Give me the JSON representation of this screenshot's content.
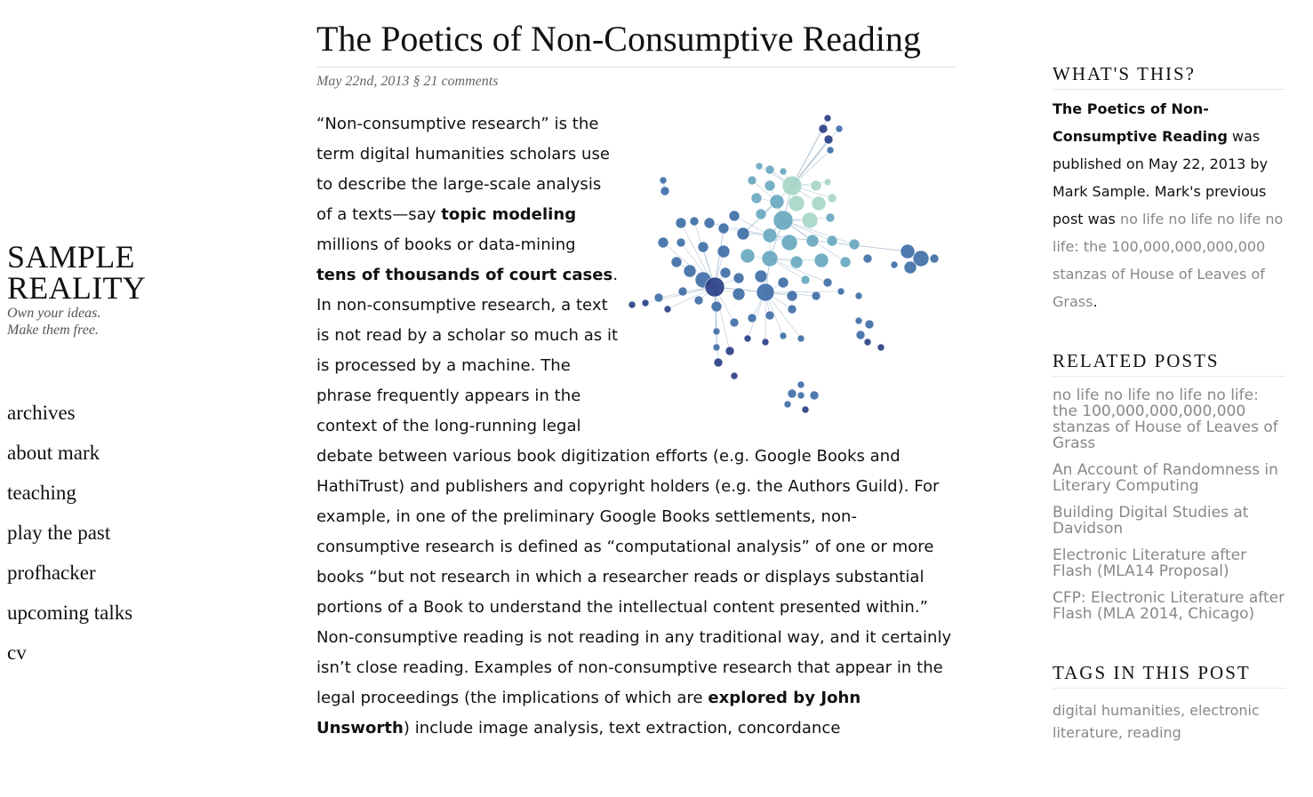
{
  "site": {
    "title_line1": "SAMPLE",
    "title_line2": "REALITY",
    "tagline_line1": "Own your ideas.",
    "tagline_line2": "Make them free."
  },
  "nav": [
    {
      "label": "archives"
    },
    {
      "label": "about mark"
    },
    {
      "label": "teaching"
    },
    {
      "label": "play the past"
    },
    {
      "label": "profhacker"
    },
    {
      "label": "upcoming talks"
    },
    {
      "label": "cv"
    }
  ],
  "post": {
    "title": "The Poetics of Non-Consumptive Reading",
    "date": "May 22nd, 2013",
    "separator": "§",
    "comments": "21 comments",
    "body": {
      "t1": "“Non-consumptive research” is the term digital humanities scholars use to describe the large-scale analysis of a texts—say ",
      "b1": "topic modeling",
      "t2": " millions of books or data-mining ",
      "b2": "tens of thousands of court cases",
      "t3": ". In non-consumptive research, a text is not read by a scholar so much as it is processed by a machine. The phrase frequently appears in the context of the long-running legal debate between various book digitization efforts (e.g. Google Books and HathiTrust) and publishers and copyright holders (e.g. the Authors Guild). For example, in one of the preliminary Google Books settlements, non-consumptive research is defined as “computational analysis” of one or more books “but not research in which a researcher reads or displays substantial portions of a Book to understand the intellectual content presented within.” Non-consumptive reading is not reading in any traditional way, and it certainly isn’t close reading. Examples of non-consumptive research that appear in the legal proceedings (the implications of which are ",
      "b3": "explored by John Unsworth",
      "t4": ") include image analysis, text extraction, concordance"
    }
  },
  "sidebar": {
    "whats_this": {
      "heading": "WHAT'S THIS?",
      "post_title": "The Poetics of Non-Consumptive Reading",
      "text1": " was published on May 22, 2013 by Mark Sample. Mark's previous post was ",
      "prev_link": "no life no life no life no life: the 100,000,000,000,000 stanzas of House of Leaves of Grass",
      "text2": "."
    },
    "related": {
      "heading": "RELATED POSTS",
      "items": [
        {
          "label": "no life no life no life no life: the 100,000,000,000,000 stanzas of House of Leaves of Grass"
        },
        {
          "label": "An Account of Randomness in Literary Computing"
        },
        {
          "label": "Building Digital Studies at Davidson"
        },
        {
          "label": "Electronic Literature after Flash (MLA14 Proposal)"
        },
        {
          "label": "CFP: Electronic Literature after Flash (MLA 2014, Chicago)"
        }
      ]
    },
    "tags": {
      "heading": "TAGS IN THIS POST",
      "items": [
        "digital humanities",
        "electronic literature",
        "reading"
      ],
      "sep": ", "
    }
  },
  "colors": {
    "text": "#111111",
    "link_muted": "#888888",
    "meta": "#666666",
    "node_dark": "#2b3f86",
    "node_mid": "#3f6fa8",
    "node_teal": "#6aa9c0",
    "node_light": "#a9d6c8",
    "node_pale": "#d9eeb4"
  }
}
